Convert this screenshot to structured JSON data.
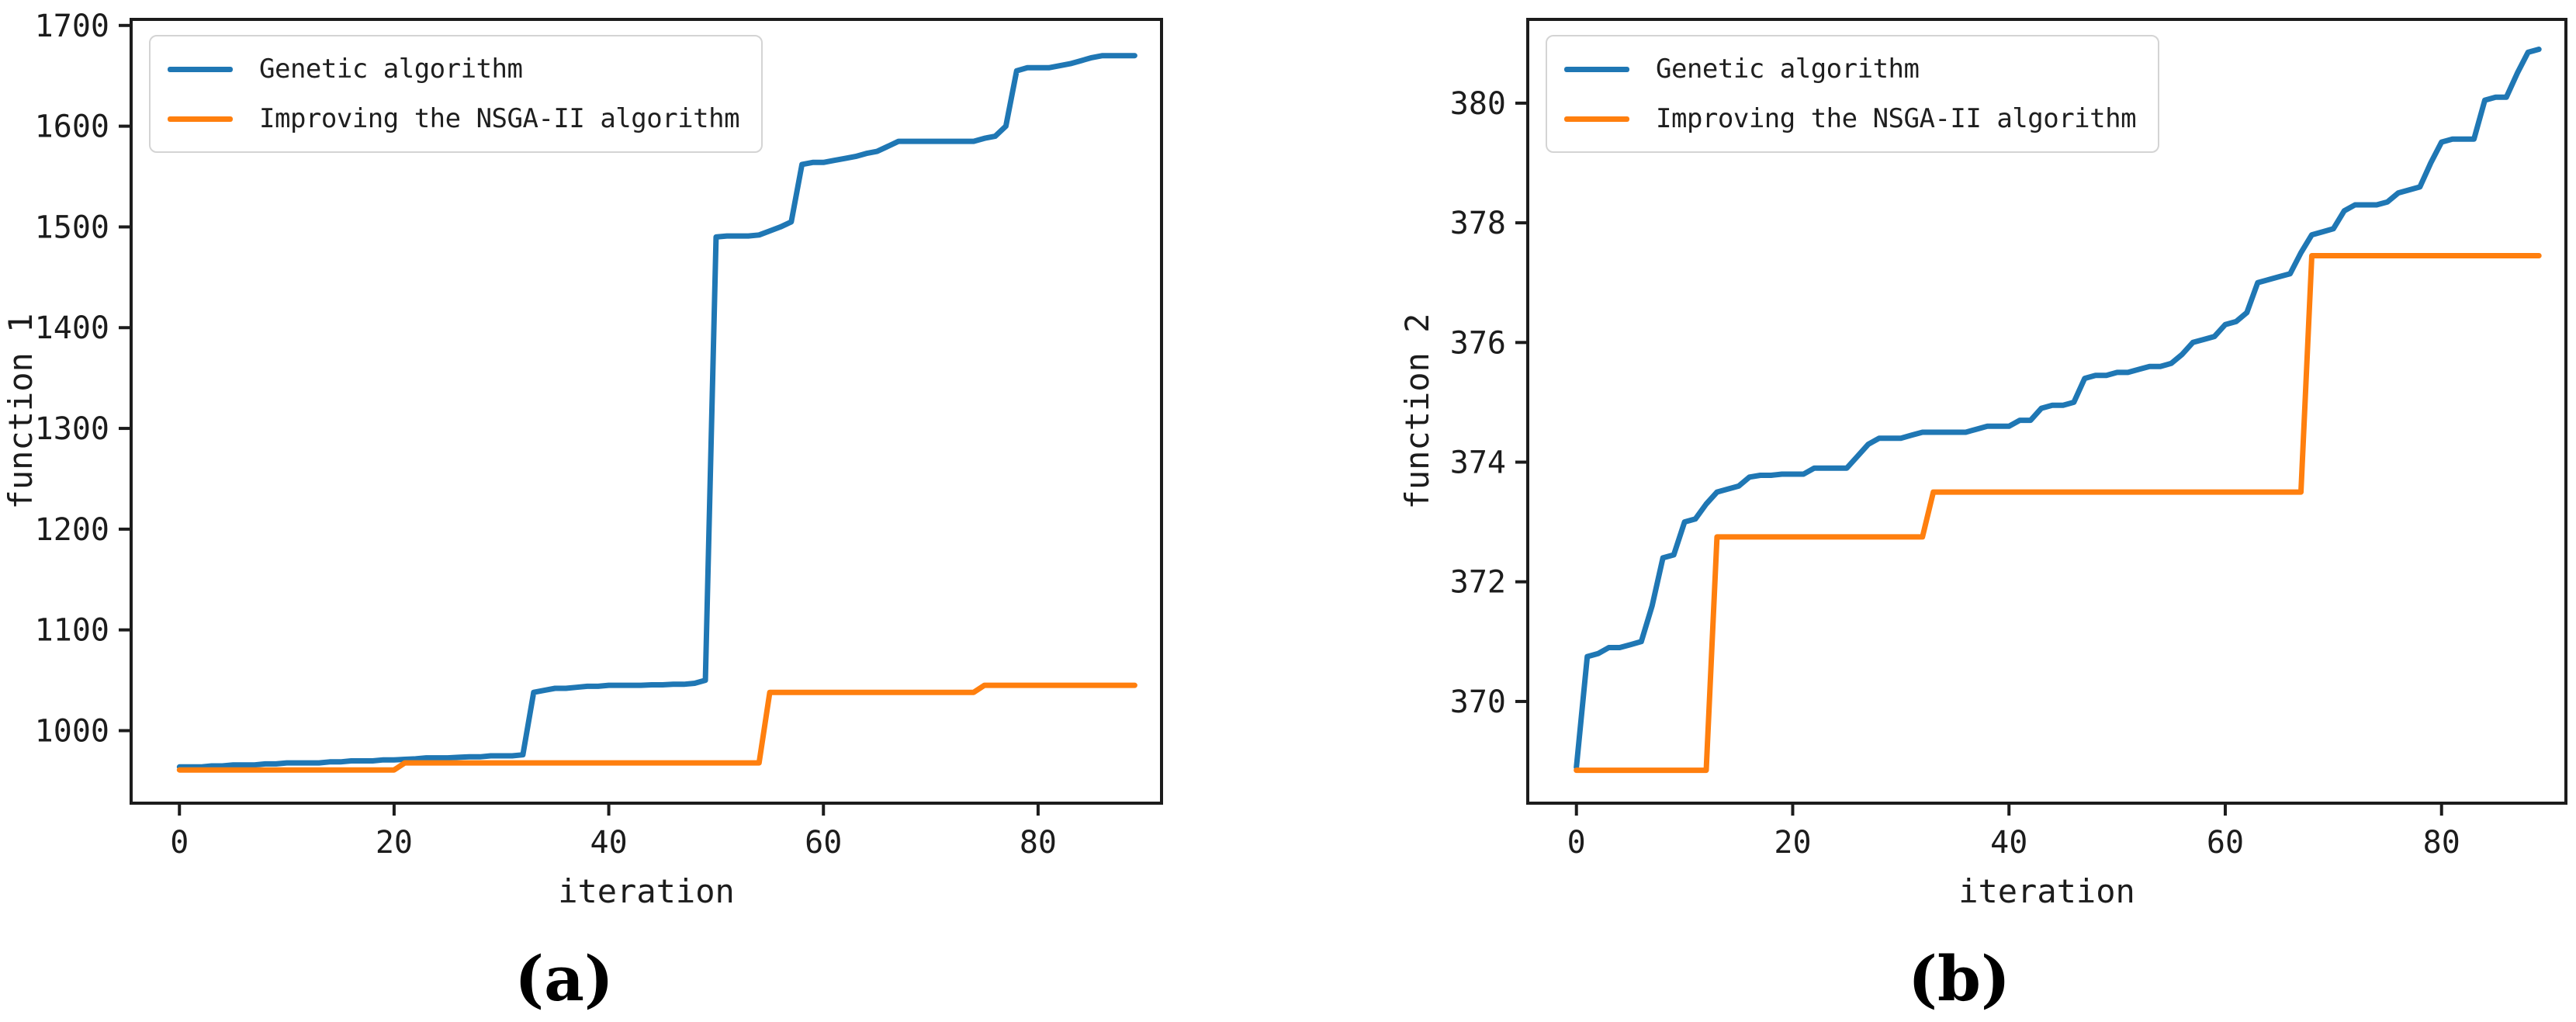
{
  "figure": {
    "background": "#ffffff",
    "text_color": "#1c1c1c",
    "captions": [
      {
        "label": "(a)"
      },
      {
        "label": "(b)"
      }
    ]
  },
  "legend": {
    "entries": [
      {
        "label": "Genetic algorithm",
        "color": "#1f77b4"
      },
      {
        "label": "Improving the NSGA-II algorithm",
        "color": "#ff7f0e"
      }
    ]
  },
  "chart_data": [
    {
      "type": "line",
      "panel": "a",
      "title": "",
      "xlabel": "iteration",
      "ylabel": "function 1",
      "x_start": 0,
      "x_step": 1,
      "xlim": [
        -4.5,
        91.5
      ],
      "ylim": [
        928,
        1706
      ],
      "xticks": [
        0,
        20,
        40,
        60,
        80
      ],
      "yticks": [
        1000,
        1100,
        1200,
        1300,
        1400,
        1500,
        1600,
        1700
      ],
      "grid": false,
      "legend_position": "upper-left",
      "series": [
        {
          "name": "Genetic algorithm",
          "color": "#1f77b4",
          "values": [
            964,
            964,
            964,
            965,
            965,
            966,
            966,
            966,
            967,
            967,
            968,
            968,
            968,
            968,
            969,
            969,
            970,
            970,
            970,
            971,
            971,
            971.5,
            972,
            973,
            973,
            973,
            973.5,
            974,
            974,
            975,
            975,
            975,
            976,
            1038,
            1040,
            1042,
            1042,
            1043,
            1044,
            1044,
            1045,
            1045,
            1045,
            1045,
            1045.5,
            1045.5,
            1046,
            1046,
            1047,
            1050,
            1490,
            1491,
            1491,
            1491,
            1492,
            1496,
            1500,
            1505,
            1562,
            1564,
            1564,
            1566,
            1568,
            1570,
            1573,
            1575,
            1580,
            1585,
            1585,
            1585,
            1585,
            1585,
            1585,
            1585,
            1585,
            1588,
            1590,
            1600,
            1655,
            1658,
            1658,
            1658,
            1660,
            1662,
            1665,
            1668,
            1670,
            1670,
            1670,
            1670
          ]
        },
        {
          "name": "Improving the NSGA-II algorithm",
          "color": "#ff7f0e",
          "values": [
            961,
            961,
            961,
            961,
            961,
            961,
            961,
            961,
            961,
            961,
            961,
            961,
            961,
            961,
            961,
            961,
            961,
            961,
            961,
            961,
            961,
            968,
            968,
            968,
            968,
            968,
            968,
            968,
            968,
            968,
            968,
            968,
            968,
            968,
            968,
            968,
            968,
            968,
            968,
            968,
            968,
            968,
            968,
            968,
            968,
            968,
            968,
            968,
            968,
            968,
            968,
            968,
            968,
            968,
            968,
            1038,
            1038,
            1038,
            1038,
            1038,
            1038,
            1038,
            1038,
            1038,
            1038,
            1038,
            1038,
            1038,
            1038,
            1038,
            1038,
            1038,
            1038,
            1038,
            1038,
            1045,
            1045,
            1045,
            1045,
            1045,
            1045,
            1045,
            1045,
            1045,
            1045,
            1045,
            1045,
            1045,
            1045,
            1045
          ]
        }
      ]
    },
    {
      "type": "line",
      "panel": "b",
      "title": "",
      "xlabel": "iteration",
      "ylabel": "function 2",
      "x_start": 0,
      "x_step": 1,
      "xlim": [
        -4.5,
        91.5
      ],
      "ylim": [
        368.3,
        381.4
      ],
      "xticks": [
        0,
        20,
        40,
        60,
        80
      ],
      "yticks": [
        370,
        372,
        374,
        376,
        378,
        380
      ],
      "grid": false,
      "legend_position": "upper-left",
      "series": [
        {
          "name": "Genetic algorithm",
          "color": "#1f77b4",
          "values": [
            368.9,
            370.75,
            370.8,
            370.9,
            370.9,
            370.95,
            371.0,
            371.6,
            372.4,
            372.45,
            373.0,
            373.05,
            373.3,
            373.5,
            373.55,
            373.6,
            373.75,
            373.78,
            373.78,
            373.8,
            373.8,
            373.8,
            373.9,
            373.9,
            373.9,
            373.9,
            374.1,
            374.3,
            374.4,
            374.4,
            374.4,
            374.45,
            374.5,
            374.5,
            374.5,
            374.5,
            374.5,
            374.55,
            374.6,
            374.6,
            374.6,
            374.7,
            374.7,
            374.9,
            374.95,
            374.95,
            375.0,
            375.4,
            375.45,
            375.45,
            375.5,
            375.5,
            375.55,
            375.6,
            375.6,
            375.65,
            375.8,
            376.0,
            376.05,
            376.1,
            376.3,
            376.35,
            376.5,
            377.0,
            377.05,
            377.1,
            377.15,
            377.5,
            377.8,
            377.85,
            377.9,
            378.2,
            378.3,
            378.3,
            378.3,
            378.35,
            378.5,
            378.55,
            378.6,
            379.0,
            379.35,
            379.4,
            379.4,
            379.4,
            380.05,
            380.1,
            380.1,
            380.5,
            380.85,
            380.9
          ]
        },
        {
          "name": "Improving the NSGA-II algorithm",
          "color": "#ff7f0e",
          "values": [
            368.85,
            368.85,
            368.85,
            368.85,
            368.85,
            368.85,
            368.85,
            368.85,
            368.85,
            368.85,
            368.85,
            368.85,
            368.85,
            372.75,
            372.75,
            372.75,
            372.75,
            372.75,
            372.75,
            372.75,
            372.75,
            372.75,
            372.75,
            372.75,
            372.75,
            372.75,
            372.75,
            372.75,
            372.75,
            372.75,
            372.75,
            372.75,
            372.75,
            373.5,
            373.5,
            373.5,
            373.5,
            373.5,
            373.5,
            373.5,
            373.5,
            373.5,
            373.5,
            373.5,
            373.5,
            373.5,
            373.5,
            373.5,
            373.5,
            373.5,
            373.5,
            373.5,
            373.5,
            373.5,
            373.5,
            373.5,
            373.5,
            373.5,
            373.5,
            373.5,
            373.5,
            373.5,
            373.5,
            373.5,
            373.5,
            373.5,
            373.5,
            373.5,
            377.45,
            377.45,
            377.45,
            377.45,
            377.45,
            377.45,
            377.45,
            377.45,
            377.45,
            377.45,
            377.45,
            377.45,
            377.45,
            377.45,
            377.45,
            377.45,
            377.45,
            377.45,
            377.45,
            377.45,
            377.45,
            377.45
          ]
        }
      ]
    }
  ]
}
